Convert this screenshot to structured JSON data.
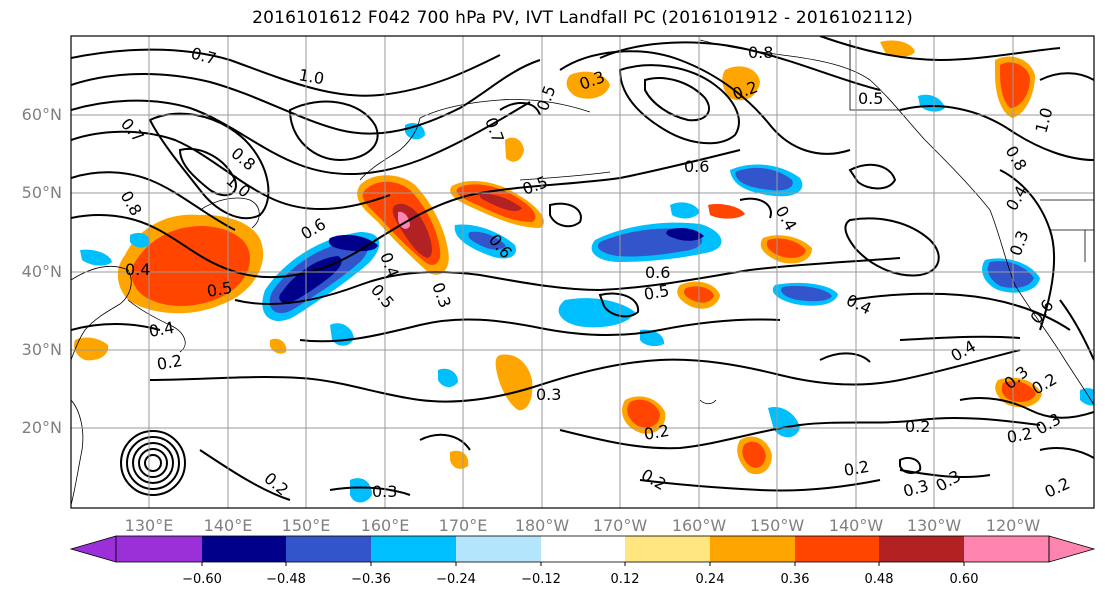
{
  "title": "2016101612 F042 700 hPa PV, IVT Landfall PC (2016101912 - 2016102112)",
  "lat_labels": [
    "60°N",
    "50°N",
    "40°N",
    "30°N",
    "20°N"
  ],
  "lon_labels": [
    "130°E",
    "140°E",
    "150°E",
    "160°E",
    "170°E",
    "180°W",
    "170°W",
    "160°W",
    "150°W",
    "140°W",
    "130°W",
    "120°W"
  ],
  "colorbar": {
    "ticks": [
      "−0.60",
      "−0.48",
      "−0.36",
      "−0.24",
      "−0.12",
      "0.12",
      "0.24",
      "0.36",
      "0.48",
      "0.60"
    ],
    "colors": [
      "#9b30d9",
      "#00008b",
      "#3355cc",
      "#00bfff",
      "#b3e5fc",
      "#ffffff",
      "#ffe680",
      "#ffa500",
      "#ff4500",
      "#b22222",
      "#ff85b0"
    ]
  },
  "contour_labels": [
    "0.7",
    "1.0",
    "0.5",
    "0.7",
    "0.8",
    "1.0",
    "0.7",
    "0.8",
    "0.6",
    "0.6",
    "0.5",
    "0.4",
    "0.4",
    "0.5",
    "0.3",
    "0.6",
    "0.6",
    "0.5",
    "0.4",
    "0.5",
    "0.3",
    "0.3",
    "0.2",
    "0.2",
    "0.2",
    "0.2",
    "0.3",
    "0.2",
    "0.3",
    "0.2",
    "0.2",
    "0.3",
    "0.2",
    "0.4",
    "0.3",
    "0.6",
    "1.0",
    "0.8",
    "0.4",
    "0.3",
    "0.2",
    "0.4",
    "0.4",
    "0.8",
    "0.3",
    "0.2",
    "0.5"
  ],
  "colors": {
    "grid": "#9a9a9a",
    "contour": "#000000",
    "tick_label": "#808080"
  }
}
